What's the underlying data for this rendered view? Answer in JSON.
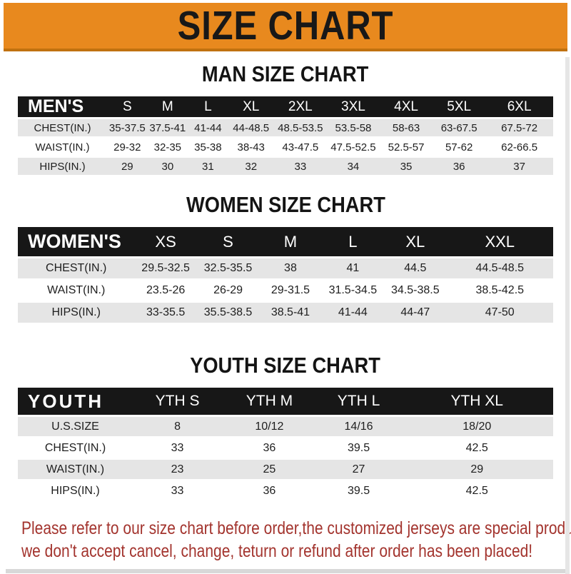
{
  "banner": {
    "title": "SIZE CHART"
  },
  "men": {
    "heading": "MAN SIZE CHART",
    "table": {
      "header": [
        "MEN'S",
        "S",
        "M",
        "L",
        "XL",
        "2XL",
        "3XL",
        "4XL",
        "5XL",
        "6XL"
      ],
      "rows": [
        [
          "CHEST(IN.)",
          "35-37.5",
          "37.5-41",
          "41-44",
          "44-48.5",
          "48.5-53.5",
          "53.5-58",
          "58-63",
          "63-67.5",
          "67.5-72"
        ],
        [
          "WAIST(IN.)",
          "29-32",
          "32-35",
          "35-38",
          "38-43",
          "43-47.5",
          "47.5-52.5",
          "52.5-57",
          "57-62",
          "62-66.5"
        ],
        [
          "HIPS(IN.)",
          "29",
          "30",
          "31",
          "32",
          "33",
          "34",
          "35",
          "36",
          "37"
        ]
      ]
    }
  },
  "women": {
    "heading": "WOMEN SIZE CHART",
    "table": {
      "header": [
        "WOMEN'S",
        "XS",
        "S",
        "M",
        "L",
        "XL",
        "XXL"
      ],
      "rows": [
        [
          "CHEST(IN.)",
          "29.5-32.5",
          "32.5-35.5",
          "38",
          "41",
          "44.5",
          "44.5-48.5"
        ],
        [
          "WAIST(IN.)",
          "23.5-26",
          "26-29",
          "29-31.5",
          "31.5-34.5",
          "34.5-38.5",
          "38.5-42.5"
        ],
        [
          "HIPS(IN.)",
          "33-35.5",
          "35.5-38.5",
          "38.5-41",
          "41-44",
          "44-47",
          "47-50"
        ]
      ]
    }
  },
  "youth": {
    "heading": "YOUTH SIZE CHART",
    "table": {
      "header": [
        "YOUTH",
        "YTH S",
        "YTH M",
        "YTH L",
        "YTH XL"
      ],
      "rows": [
        [
          "U.S.SIZE",
          "8",
          "10/12",
          "14/16",
          "18/20"
        ],
        [
          "CHEST(IN.)",
          "33",
          "36",
          "39.5",
          "42.5"
        ],
        [
          "WAIST(IN.)",
          "23",
          "25",
          "27",
          "29"
        ],
        [
          "HIPS(IN.)",
          "33",
          "36",
          "39.5",
          "42.5"
        ]
      ]
    }
  },
  "footer": {
    "line1": "Please refer to our size chart before order,the customized jerseys are special products,",
    "line2": "we don't accept cancel, change, teturn or refund after order has been placed!"
  },
  "colors": {
    "banner_orange": "#E8891E",
    "banner_underline": "#C0710F",
    "header_bar_black": "#171717",
    "row_shade_gray": "#E5E5E5",
    "note_red": "#A3342E"
  }
}
